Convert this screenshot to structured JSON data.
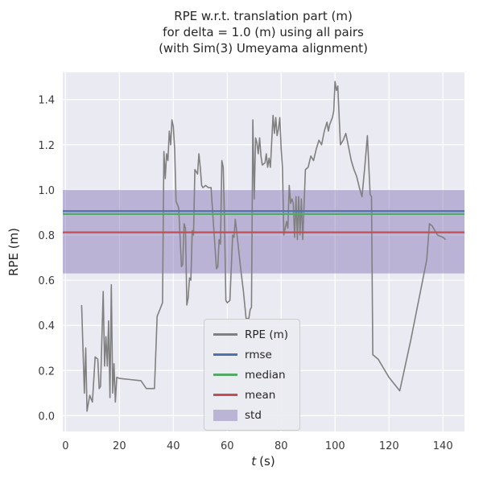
{
  "figure": {
    "bg": "#ffffff",
    "plot_bg": "#EAEAF2",
    "grid_color": "#ffffff",
    "text_color": "#262626"
  },
  "chart_data": {
    "type": "line",
    "title_lines": [
      "RPE w.r.t. translation part (m)",
      "for delta = 1.0 (m) using all pairs",
      "(with Sim(3) Umeyama alignment)"
    ],
    "xlabel_var": "t",
    "xlabel_unit": "(s)",
    "ylabel": "RPE (m)",
    "xlim": [
      -1,
      148
    ],
    "ylim": [
      -0.07,
      1.52
    ],
    "xticks": [
      0,
      20,
      40,
      60,
      80,
      100,
      120,
      140
    ],
    "yticks": [
      0.0,
      0.2,
      0.4,
      0.6,
      0.8,
      1.0,
      1.2,
      1.4
    ],
    "grid": true,
    "legend_position": "lower center",
    "series": [
      {
        "name": "RPE (m)",
        "color": "#808080",
        "x": [
          6,
          7,
          7.5,
          8,
          9,
          10,
          11,
          12,
          12.5,
          13,
          14,
          14.5,
          15,
          15.5,
          16,
          16.5,
          17,
          17.5,
          18,
          18.5,
          19,
          20,
          24,
          28,
          30,
          33,
          34,
          35,
          36,
          36.5,
          37,
          37.5,
          38,
          38.5,
          39,
          39.5,
          40,
          40.5,
          41,
          42,
          43,
          43.5,
          44,
          44.5,
          45,
          45.5,
          46,
          46.5,
          47,
          47.5,
          48,
          49,
          49.5,
          50,
          50.5,
          51,
          52,
          53,
          54,
          55,
          56,
          56.5,
          57,
          57.5,
          58,
          58.5,
          59,
          59.5,
          60,
          61,
          62,
          62.5,
          63,
          64,
          65,
          66,
          67,
          68,
          68.5,
          69,
          69.5,
          70,
          70.5,
          71,
          71.5,
          72,
          72.5,
          73,
          74,
          74.5,
          75,
          75.5,
          76,
          77,
          77.5,
          78,
          78.5,
          79,
          79.5,
          80,
          80.5,
          81,
          81.5,
          82,
          82.5,
          83,
          83.5,
          84,
          84.5,
          85,
          85.5,
          86,
          86.5,
          87,
          87.5,
          88,
          89,
          90,
          91,
          92,
          93,
          94,
          95,
          96,
          97,
          97.5,
          98,
          99,
          99.5,
          100,
          100.5,
          101,
          102,
          103,
          104,
          105,
          106,
          107,
          108,
          109,
          110,
          111,
          112,
          113,
          113.5,
          114,
          116,
          118,
          120,
          122,
          124,
          126,
          128,
          130,
          132,
          134,
          135,
          136,
          138,
          140,
          141
        ],
        "y": [
          0.49,
          0.1,
          0.3,
          0.02,
          0.09,
          0.06,
          0.26,
          0.25,
          0.12,
          0.13,
          0.55,
          0.22,
          0.35,
          0.22,
          0.42,
          0.08,
          0.58,
          0.1,
          0.23,
          0.06,
          0.17,
          0.165,
          0.16,
          0.155,
          0.12,
          0.12,
          0.44,
          0.47,
          0.5,
          1.17,
          1.05,
          1.16,
          1.13,
          1.26,
          1.2,
          1.31,
          1.28,
          1.18,
          0.95,
          0.92,
          0.66,
          0.67,
          0.85,
          0.83,
          0.49,
          0.52,
          0.61,
          0.6,
          0.82,
          0.8,
          1.09,
          1.07,
          1.16,
          1.1,
          1.02,
          1.01,
          1.02,
          1.01,
          1.01,
          0.83,
          0.65,
          0.66,
          0.78,
          0.76,
          1.13,
          1.1,
          0.86,
          0.51,
          0.5,
          0.51,
          0.8,
          0.79,
          0.87,
          0.76,
          0.65,
          0.55,
          0.43,
          0.43,
          0.47,
          0.48,
          1.31,
          0.96,
          1.23,
          1.21,
          1.16,
          1.23,
          1.15,
          1.11,
          1.12,
          1.16,
          1.1,
          1.14,
          1.1,
          1.33,
          1.25,
          1.32,
          1.24,
          1.27,
          1.32,
          1.18,
          1.1,
          0.8,
          0.83,
          0.86,
          0.83,
          1.02,
          0.94,
          0.96,
          0.94,
          0.79,
          0.97,
          0.78,
          0.97,
          0.8,
          0.96,
          0.78,
          1.09,
          1.1,
          1.15,
          1.13,
          1.18,
          1.22,
          1.2,
          1.26,
          1.3,
          1.26,
          1.29,
          1.32,
          1.35,
          1.48,
          1.44,
          1.46,
          1.2,
          1.22,
          1.25,
          1.19,
          1.13,
          1.09,
          1.06,
          1.01,
          0.97,
          1.1,
          1.24,
          0.98,
          0.97,
          0.27,
          0.25,
          0.21,
          0.17,
          0.14,
          0.11,
          0.22,
          0.33,
          0.45,
          0.57,
          0.69,
          0.85,
          0.84,
          0.8,
          0.79,
          0.78
        ]
      }
    ],
    "stat_lines": [
      {
        "name": "rmse",
        "value": 0.906,
        "color": "#4C72B0"
      },
      {
        "name": "median",
        "value": 0.893,
        "color": "#55A868"
      },
      {
        "name": "mean",
        "value": 0.812,
        "color": "#C44E52"
      }
    ],
    "std_band": {
      "name": "std",
      "low": 0.63,
      "high": 1.0,
      "color": "#8172B2",
      "opacity": 0.45
    }
  },
  "legend": {
    "items": [
      {
        "label": "RPE (m)",
        "color": "#808080",
        "type": "line"
      },
      {
        "label": "rmse",
        "color": "#4C72B0",
        "type": "line"
      },
      {
        "label": "median",
        "color": "#55A868",
        "type": "line"
      },
      {
        "label": "mean",
        "color": "#C44E52",
        "type": "line"
      },
      {
        "label": "std",
        "color": "#8172B2",
        "type": "patch"
      }
    ]
  }
}
